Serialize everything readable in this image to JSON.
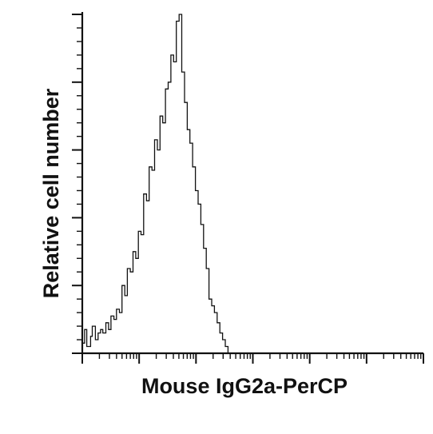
{
  "chart_data": {
    "type": "line",
    "title": "",
    "xlabel": "Mouse IgG2a-PerCP",
    "ylabel": "Relative cell number",
    "x_scale": "log",
    "xlim": [
      10,
      10000000
    ],
    "ylim": [
      0,
      100
    ],
    "grid": false,
    "legend": "none",
    "line_color": "#111111",
    "series": [
      {
        "x": [
          10,
          11,
          12,
          14,
          15,
          17,
          19,
          21,
          23,
          26,
          29,
          32,
          36,
          40,
          45,
          50,
          56,
          62,
          70,
          78,
          87,
          97,
          108,
          120,
          135,
          150,
          168,
          187,
          209,
          233,
          260,
          290,
          324,
          362,
          404,
          451,
          504,
          562,
          628,
          701,
          782,
          873,
          975,
          1089,
          1215,
          1357,
          1515,
          1691,
          1889,
          2109,
          2354,
          2628,
          2934,
          3276,
          3658
        ],
        "y": [
          3,
          7,
          2,
          5,
          8,
          4,
          6,
          7,
          6,
          9,
          7,
          11,
          10,
          13,
          12,
          20,
          17,
          25,
          24,
          30,
          28,
          36,
          35,
          47,
          45,
          55,
          54,
          63,
          60,
          70,
          68,
          78,
          80,
          88,
          86,
          98,
          100,
          83,
          74,
          66,
          62,
          55,
          48,
          44,
          38,
          31,
          25,
          16,
          14,
          12,
          9,
          6,
          4,
          2,
          0
        ]
      }
    ]
  }
}
